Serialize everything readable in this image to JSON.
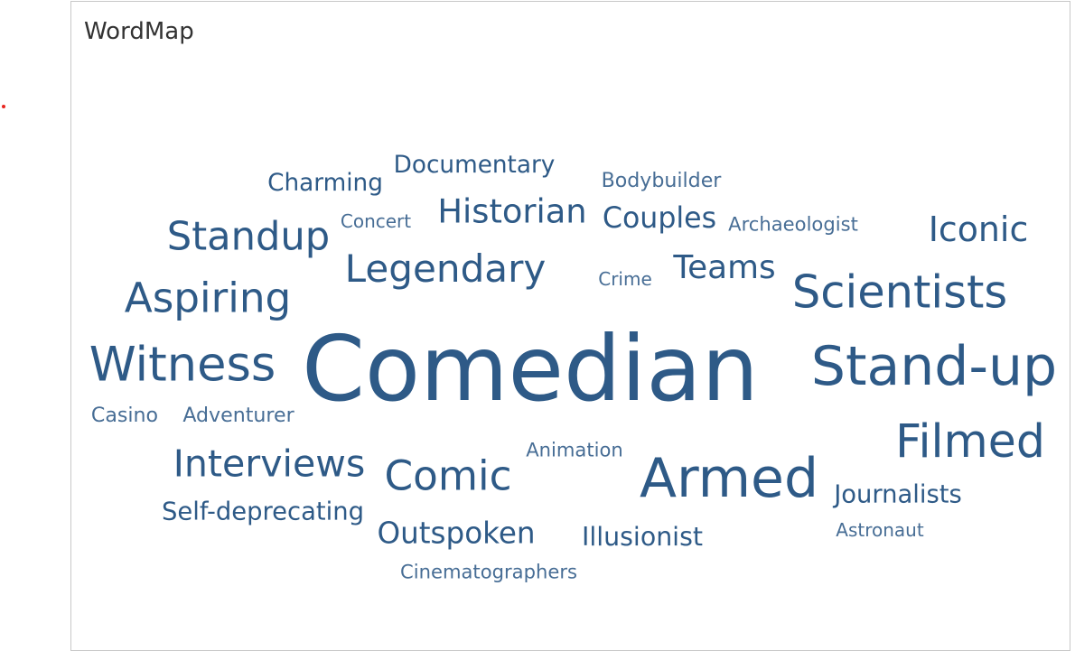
{
  "sheet": {
    "title": "WordMap"
  },
  "colors": {
    "word": "#2e5a87",
    "title": "#333333"
  },
  "chart_data": {
    "type": "wordcloud",
    "title": "WordMap",
    "words": [
      {
        "text": "Comedian",
        "weight": 100
      },
      {
        "text": "Stand-up",
        "weight": 62
      },
      {
        "text": "Armed",
        "weight": 62
      },
      {
        "text": "Witness",
        "weight": 55
      },
      {
        "text": "Filmed",
        "weight": 53
      },
      {
        "text": "Scientists",
        "weight": 52
      },
      {
        "text": "Aspiring",
        "weight": 48
      },
      {
        "text": "Comic",
        "weight": 48
      },
      {
        "text": "Standup",
        "weight": 46
      },
      {
        "text": "Legendary",
        "weight": 45
      },
      {
        "text": "Interviews",
        "weight": 44
      },
      {
        "text": "Iconic",
        "weight": 41
      },
      {
        "text": "Historian",
        "weight": 40
      },
      {
        "text": "Teams",
        "weight": 39
      },
      {
        "text": "Outspoken",
        "weight": 36
      },
      {
        "text": "Couples",
        "weight": 35
      },
      {
        "text": "Illusionist",
        "weight": 32
      },
      {
        "text": "Self-deprecating",
        "weight": 31
      },
      {
        "text": "Journalists",
        "weight": 31
      },
      {
        "text": "Charming",
        "weight": 30
      },
      {
        "text": "Documentary",
        "weight": 30
      },
      {
        "text": "Bodybuilder",
        "weight": 26
      },
      {
        "text": "Adventurer",
        "weight": 26
      },
      {
        "text": "Casino",
        "weight": 26
      },
      {
        "text": "Animation",
        "weight": 25
      },
      {
        "text": "Cinematographers",
        "weight": 25
      },
      {
        "text": "Archaeologist",
        "weight": 25
      },
      {
        "text": "Concert",
        "weight": 24
      },
      {
        "text": "Astronaut",
        "weight": 24
      },
      {
        "text": "Crime",
        "weight": 24
      }
    ]
  }
}
